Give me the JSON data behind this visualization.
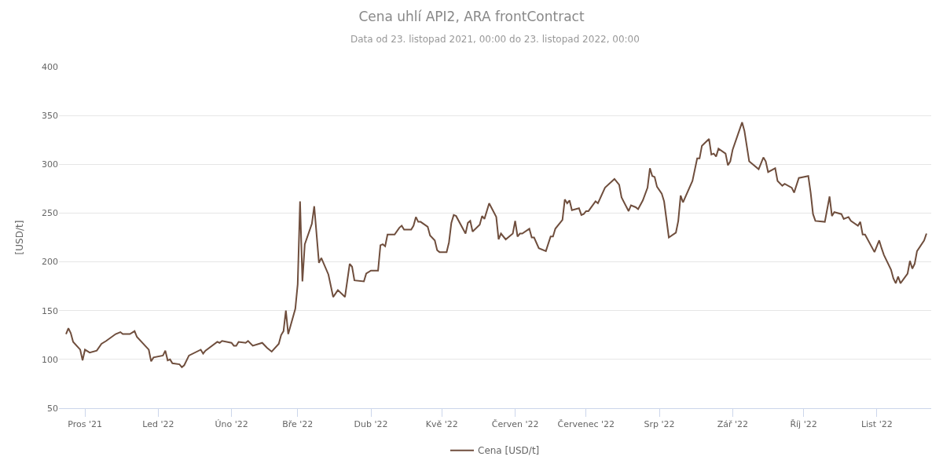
{
  "chart_data": {
    "type": "line",
    "title": "Cena uhlí API2, ARA frontContract",
    "subtitle": "Data od 23. listopad 2021, 00:00 do 23. listopad 2022, 00:00",
    "ylabel": "[USD/t]",
    "xlim": [
      "2021-11-20",
      "2022-11-24"
    ],
    "xticks": [
      {
        "value": "2021-12-01",
        "label": "Pros '21"
      },
      {
        "value": "2022-01-01",
        "label": "Led '22"
      },
      {
        "value": "2022-02-01",
        "label": "Úno '22"
      },
      {
        "value": "2022-03-01",
        "label": "Bře '22"
      },
      {
        "value": "2022-04-01",
        "label": "Dub '22"
      },
      {
        "value": "2022-05-01",
        "label": "Kvě '22"
      },
      {
        "value": "2022-06-01",
        "label": "Červen '22"
      },
      {
        "value": "2022-07-01",
        "label": "Červenec '22"
      },
      {
        "value": "2022-08-01",
        "label": "Srp '22"
      },
      {
        "value": "2022-09-01",
        "label": "Zář '22"
      },
      {
        "value": "2022-10-01",
        "label": "Říj '22"
      },
      {
        "value": "2022-11-01",
        "label": "List '22"
      }
    ],
    "ylim": [
      50,
      400
    ],
    "yticks": [
      50,
      100,
      150,
      200,
      250,
      300,
      350,
      400
    ],
    "grid": "y",
    "legend": "bottom",
    "marker": "none",
    "line_style": "solid",
    "series": [
      {
        "name": "Cena [USD/t]",
        "color": "#6f4e3d",
        "x": [
          "2021-11-23",
          "2021-11-24",
          "2021-11-25",
          "2021-11-26",
          "2021-11-29",
          "2021-11-30",
          "2021-12-01",
          "2021-12-03",
          "2021-12-06",
          "2021-12-08",
          "2021-12-10",
          "2021-12-14",
          "2021-12-16",
          "2021-12-17",
          "2021-12-20",
          "2021-12-22",
          "2021-12-23",
          "2021-12-28",
          "2021-12-29",
          "2021-12-30",
          "2022-01-03",
          "2022-01-04",
          "2022-01-05",
          "2022-01-06",
          "2022-01-07",
          "2022-01-10",
          "2022-01-11",
          "2022-01-12",
          "2022-01-14",
          "2022-01-19",
          "2022-01-20",
          "2022-01-21",
          "2022-01-26",
          "2022-01-27",
          "2022-01-28",
          "2022-02-01",
          "2022-02-02",
          "2022-02-03",
          "2022-02-04",
          "2022-02-07",
          "2022-02-08",
          "2022-02-10",
          "2022-02-14",
          "2022-02-16",
          "2022-02-18",
          "2022-02-21",
          "2022-02-22",
          "2022-02-23",
          "2022-02-24",
          "2022-02-25",
          "2022-02-28",
          "2022-03-01",
          "2022-03-02",
          "2022-03-03",
          "2022-03-04",
          "2022-03-07",
          "2022-03-08",
          "2022-03-10",
          "2022-03-11",
          "2022-03-14",
          "2022-03-16",
          "2022-03-18",
          "2022-03-21",
          "2022-03-23",
          "2022-03-24",
          "2022-03-25",
          "2022-03-29",
          "2022-03-30",
          "2022-04-01",
          "2022-04-04",
          "2022-04-05",
          "2022-04-06",
          "2022-04-07",
          "2022-04-08",
          "2022-04-11",
          "2022-04-13",
          "2022-04-14",
          "2022-04-15",
          "2022-04-18",
          "2022-04-19",
          "2022-04-20",
          "2022-04-21",
          "2022-04-22",
          "2022-04-25",
          "2022-04-26",
          "2022-04-28",
          "2022-04-29",
          "2022-04-30",
          "2022-05-03",
          "2022-05-04",
          "2022-05-05",
          "2022-05-06",
          "2022-05-07",
          "2022-05-11",
          "2022-05-12",
          "2022-05-13",
          "2022-05-14",
          "2022-05-17",
          "2022-05-18",
          "2022-05-19",
          "2022-05-21",
          "2022-05-24",
          "2022-05-25",
          "2022-05-26",
          "2022-05-28",
          "2022-05-31",
          "2022-06-01",
          "2022-06-02",
          "2022-06-03",
          "2022-06-04",
          "2022-06-07",
          "2022-06-08",
          "2022-06-09",
          "2022-06-11",
          "2022-06-14",
          "2022-06-16",
          "2022-06-17",
          "2022-06-18",
          "2022-06-21",
          "2022-06-22",
          "2022-06-23",
          "2022-06-24",
          "2022-06-25",
          "2022-06-28",
          "2022-06-29",
          "2022-06-30",
          "2022-07-01",
          "2022-07-02",
          "2022-07-05",
          "2022-07-06",
          "2022-07-09",
          "2022-07-13",
          "2022-07-15",
          "2022-07-16",
          "2022-07-19",
          "2022-07-20",
          "2022-07-22",
          "2022-07-23",
          "2022-07-25",
          "2022-07-27",
          "2022-07-28",
          "2022-07-29",
          "2022-07-30",
          "2022-07-31",
          "2022-08-02",
          "2022-08-03",
          "2022-08-05",
          "2022-08-08",
          "2022-08-09",
          "2022-08-10",
          "2022-08-11",
          "2022-08-15",
          "2022-08-17",
          "2022-08-18",
          "2022-08-19",
          "2022-08-22",
          "2022-08-23",
          "2022-08-24",
          "2022-08-25",
          "2022-08-26",
          "2022-08-29",
          "2022-08-30",
          "2022-08-31",
          "2022-09-01",
          "2022-09-05",
          "2022-09-06",
          "2022-09-08",
          "2022-09-12",
          "2022-09-14",
          "2022-09-15",
          "2022-09-16",
          "2022-09-19",
          "2022-09-20",
          "2022-09-22",
          "2022-09-23",
          "2022-09-26",
          "2022-09-27",
          "2022-09-29",
          "2022-10-03",
          "2022-10-04",
          "2022-10-05",
          "2022-10-06",
          "2022-10-10",
          "2022-10-12",
          "2022-10-13",
          "2022-10-14",
          "2022-10-17",
          "2022-10-18",
          "2022-10-20",
          "2022-10-21",
          "2022-10-24",
          "2022-10-25",
          "2022-10-26",
          "2022-10-27",
          "2022-10-31",
          "2022-11-02",
          "2022-11-03",
          "2022-11-04",
          "2022-11-07",
          "2022-11-08",
          "2022-11-09",
          "2022-11-10",
          "2022-11-11",
          "2022-11-14",
          "2022-11-15",
          "2022-11-16",
          "2022-11-17",
          "2022-11-18",
          "2022-11-21",
          "2022-11-22"
        ],
        "values": [
          126,
          132,
          127,
          118,
          110,
          99,
          110,
          107,
          109,
          116,
          119,
          126,
          128,
          126,
          126,
          129,
          123,
          110,
          98,
          102,
          104,
          109,
          99,
          100,
          96,
          95,
          92,
          94,
          104,
          110,
          106,
          109,
          118,
          117,
          119,
          117,
          114,
          114,
          118,
          117,
          119,
          114,
          117,
          112,
          108,
          116,
          125,
          129,
          150,
          126,
          152,
          177,
          262,
          180,
          218,
          239,
          257,
          199,
          204,
          187,
          164,
          171,
          164,
          198,
          195,
          181,
          180,
          188,
          191,
          191,
          217,
          218,
          216,
          228,
          228,
          235,
          237,
          233,
          233,
          237,
          246,
          241,
          241,
          236,
          227,
          222,
          212,
          210,
          210,
          220,
          240,
          248,
          247,
          229,
          240,
          242,
          231,
          238,
          247,
          244,
          260,
          246,
          223,
          229,
          223,
          229,
          242,
          226,
          229,
          229,
          234,
          225,
          225,
          214,
          211,
          226,
          226,
          234,
          243,
          264,
          260,
          263,
          253,
          255,
          248,
          249,
          252,
          252,
          262,
          260,
          276,
          285,
          279,
          266,
          252,
          258,
          256,
          254,
          263,
          276,
          296,
          288,
          287,
          277,
          270,
          262,
          225,
          230,
          242,
          268,
          261,
          283,
          306,
          306,
          319,
          326,
          310,
          311,
          308,
          316,
          311,
          299,
          303,
          315,
          343,
          334,
          303,
          295,
          307,
          303,
          292,
          296,
          283,
          278,
          280,
          276,
          271,
          286,
          288,
          271,
          249,
          242,
          241,
          267,
          247,
          251,
          249,
          244,
          246,
          242,
          237,
          241,
          228,
          228,
          210,
          222,
          214,
          207,
          192,
          183,
          178,
          185,
          178,
          188,
          201,
          193,
          198,
          211,
          222,
          229
        ]
      }
    ]
  }
}
